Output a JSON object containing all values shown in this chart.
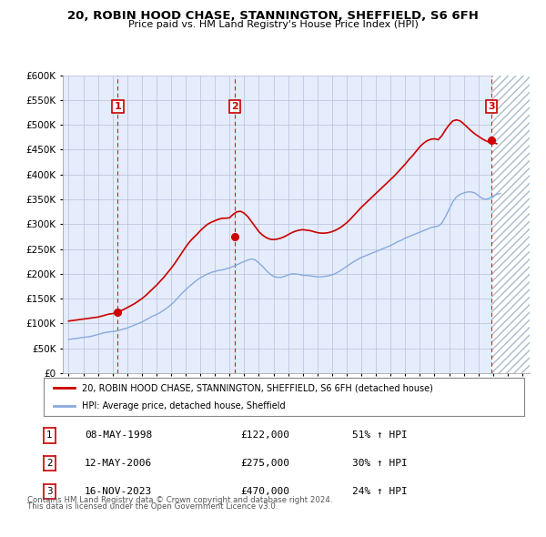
{
  "title": "20, ROBIN HOOD CHASE, STANNINGTON, SHEFFIELD, S6 6FH",
  "subtitle": "Price paid vs. HM Land Registry's House Price Index (HPI)",
  "ylim": [
    0,
    600000
  ],
  "yticks": [
    0,
    50000,
    100000,
    150000,
    200000,
    250000,
    300000,
    350000,
    400000,
    450000,
    500000,
    550000,
    600000
  ],
  "xlim_start": 1994.6,
  "xlim_end": 2026.5,
  "bg_color": "#f0f4ff",
  "grid_color": "#b0b8d0",
  "sale_color": "#cc0000",
  "hpi_color": "#88aadd",
  "sale_label": "20, ROBIN HOOD CHASE, STANNINGTON, SHEFFIELD, S6 6FH (detached house)",
  "hpi_label": "HPI: Average price, detached house, Sheffield",
  "transactions": [
    {
      "num": 1,
      "date": "08-MAY-1998",
      "price": 122000,
      "pct": "51%",
      "x": 1998.36
    },
    {
      "num": 2,
      "date": "12-MAY-2006",
      "price": 275000,
      "pct": "30%",
      "x": 2006.36
    },
    {
      "num": 3,
      "date": "16-NOV-2023",
      "price": 470000,
      "pct": "24%",
      "x": 2023.88
    }
  ],
  "footer1": "Contains HM Land Registry data © Crown copyright and database right 2024.",
  "footer2": "This data is licensed under the Open Government Licence v3.0.",
  "hpi_data_x": [
    1995.0,
    1995.25,
    1995.5,
    1995.75,
    1996.0,
    1996.25,
    1996.5,
    1996.75,
    1997.0,
    1997.25,
    1997.5,
    1997.75,
    1998.0,
    1998.25,
    1998.5,
    1998.75,
    1999.0,
    1999.25,
    1999.5,
    1999.75,
    2000.0,
    2000.25,
    2000.5,
    2000.75,
    2001.0,
    2001.25,
    2001.5,
    2001.75,
    2002.0,
    2002.25,
    2002.5,
    2002.75,
    2003.0,
    2003.25,
    2003.5,
    2003.75,
    2004.0,
    2004.25,
    2004.5,
    2004.75,
    2005.0,
    2005.25,
    2005.5,
    2005.75,
    2006.0,
    2006.25,
    2006.5,
    2006.75,
    2007.0,
    2007.25,
    2007.5,
    2007.75,
    2008.0,
    2008.25,
    2008.5,
    2008.75,
    2009.0,
    2009.25,
    2009.5,
    2009.75,
    2010.0,
    2010.25,
    2010.5,
    2010.75,
    2011.0,
    2011.25,
    2011.5,
    2011.75,
    2012.0,
    2012.25,
    2012.5,
    2012.75,
    2013.0,
    2013.25,
    2013.5,
    2013.75,
    2014.0,
    2014.25,
    2014.5,
    2014.75,
    2015.0,
    2015.25,
    2015.5,
    2015.75,
    2016.0,
    2016.25,
    2016.5,
    2016.75,
    2017.0,
    2017.25,
    2017.5,
    2017.75,
    2018.0,
    2018.25,
    2018.5,
    2018.75,
    2019.0,
    2019.25,
    2019.5,
    2019.75,
    2020.0,
    2020.25,
    2020.5,
    2020.75,
    2021.0,
    2021.25,
    2021.5,
    2021.75,
    2022.0,
    2022.25,
    2022.5,
    2022.75,
    2023.0,
    2023.25,
    2023.5,
    2023.75,
    2024.0,
    2024.25,
    2024.5
  ],
  "hpi_data_y": [
    68000,
    69000,
    70000,
    71000,
    72000,
    73000,
    74000,
    76000,
    78000,
    80000,
    82000,
    83000,
    84000,
    85000,
    87000,
    89000,
    91000,
    94000,
    97000,
    100000,
    103000,
    107000,
    111000,
    115000,
    118000,
    122000,
    127000,
    132000,
    138000,
    145000,
    153000,
    161000,
    168000,
    175000,
    181000,
    187000,
    192000,
    196000,
    200000,
    203000,
    205000,
    207000,
    208000,
    210000,
    212000,
    215000,
    218000,
    222000,
    225000,
    228000,
    230000,
    228000,
    222000,
    215000,
    207000,
    200000,
    195000,
    193000,
    193000,
    195000,
    198000,
    200000,
    200000,
    199000,
    197000,
    197000,
    196000,
    195000,
    194000,
    194000,
    195000,
    196000,
    198000,
    201000,
    205000,
    210000,
    215000,
    220000,
    225000,
    229000,
    233000,
    236000,
    239000,
    242000,
    245000,
    248000,
    251000,
    254000,
    257000,
    261000,
    265000,
    268000,
    272000,
    275000,
    278000,
    281000,
    284000,
    287000,
    290000,
    293000,
    295000,
    296000,
    302000,
    315000,
    330000,
    345000,
    355000,
    360000,
    363000,
    365000,
    365000,
    363000,
    358000,
    352000,
    350000,
    352000,
    356000,
    360000,
    362000
  ],
  "price_data_x": [
    1995.0,
    1995.25,
    1995.5,
    1995.75,
    1996.0,
    1996.25,
    1996.5,
    1996.75,
    1997.0,
    1997.25,
    1997.5,
    1997.75,
    1998.0,
    1998.25,
    1998.5,
    1998.75,
    1999.0,
    1999.25,
    1999.5,
    1999.75,
    2000.0,
    2000.25,
    2000.5,
    2000.75,
    2001.0,
    2001.25,
    2001.5,
    2001.75,
    2002.0,
    2002.25,
    2002.5,
    2002.75,
    2003.0,
    2003.25,
    2003.5,
    2003.75,
    2004.0,
    2004.25,
    2004.5,
    2004.75,
    2005.0,
    2005.25,
    2005.5,
    2005.75,
    2006.0,
    2006.25,
    2006.5,
    2006.75,
    2007.0,
    2007.25,
    2007.5,
    2007.75,
    2008.0,
    2008.25,
    2008.5,
    2008.75,
    2009.0,
    2009.25,
    2009.5,
    2009.75,
    2010.0,
    2010.25,
    2010.5,
    2010.75,
    2011.0,
    2011.25,
    2011.5,
    2011.75,
    2012.0,
    2012.25,
    2012.5,
    2012.75,
    2013.0,
    2013.25,
    2013.5,
    2013.75,
    2014.0,
    2014.25,
    2014.5,
    2014.75,
    2015.0,
    2015.25,
    2015.5,
    2015.75,
    2016.0,
    2016.25,
    2016.5,
    2016.75,
    2017.0,
    2017.25,
    2017.5,
    2017.75,
    2018.0,
    2018.25,
    2018.5,
    2018.75,
    2019.0,
    2019.25,
    2019.5,
    2019.75,
    2020.0,
    2020.25,
    2020.5,
    2020.75,
    2021.0,
    2021.25,
    2021.5,
    2021.75,
    2022.0,
    2022.25,
    2022.5,
    2022.75,
    2023.0,
    2023.25,
    2023.5,
    2023.75,
    2024.0,
    2024.25
  ],
  "price_data_y": [
    105000,
    106000,
    107000,
    108000,
    109000,
    110000,
    111000,
    112000,
    113000,
    115000,
    117000,
    119000,
    120000,
    122000,
    125000,
    128000,
    132000,
    136000,
    140000,
    145000,
    150000,
    156000,
    163000,
    170000,
    177000,
    185000,
    193000,
    202000,
    211000,
    221000,
    232000,
    243000,
    254000,
    264000,
    272000,
    279000,
    287000,
    294000,
    300000,
    304000,
    307000,
    310000,
    312000,
    312000,
    313000,
    320000,
    325000,
    326000,
    322000,
    315000,
    305000,
    295000,
    285000,
    278000,
    273000,
    270000,
    269000,
    270000,
    272000,
    275000,
    279000,
    283000,
    286000,
    288000,
    289000,
    288000,
    287000,
    285000,
    283000,
    282000,
    282000,
    283000,
    285000,
    288000,
    292000,
    297000,
    303000,
    310000,
    318000,
    326000,
    334000,
    341000,
    348000,
    355000,
    362000,
    369000,
    376000,
    383000,
    390000,
    397000,
    405000,
    413000,
    421000,
    430000,
    438000,
    447000,
    456000,
    463000,
    468000,
    471000,
    472000,
    470000,
    478000,
    490000,
    500000,
    508000,
    510000,
    508000,
    502000,
    495000,
    488000,
    482000,
    477000,
    472000,
    468000,
    465000,
    464000,
    462000
  ]
}
